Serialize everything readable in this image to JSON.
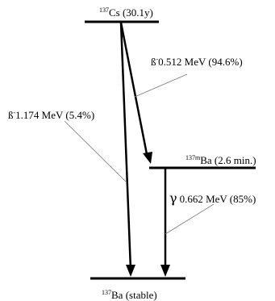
{
  "levels": {
    "parent": {
      "mass": "137",
      "label": "Cs (30.1y)"
    },
    "metastable": {
      "mass": "137m",
      "label": "Ba (2.6 min.)"
    },
    "ground": {
      "mass": "137",
      "label": "Ba (stable)"
    }
  },
  "transitions": {
    "beta_major": {
      "symbol": "ß",
      "charge": "-",
      "energy": "0.512 MeV (94.6%)"
    },
    "beta_minor": {
      "symbol": "ß",
      "charge": "-",
      "energy": "1.174 MeV (5.4%)"
    },
    "gamma": {
      "symbol": "γ",
      "energy": "0.662 MeV (85%)"
    }
  }
}
